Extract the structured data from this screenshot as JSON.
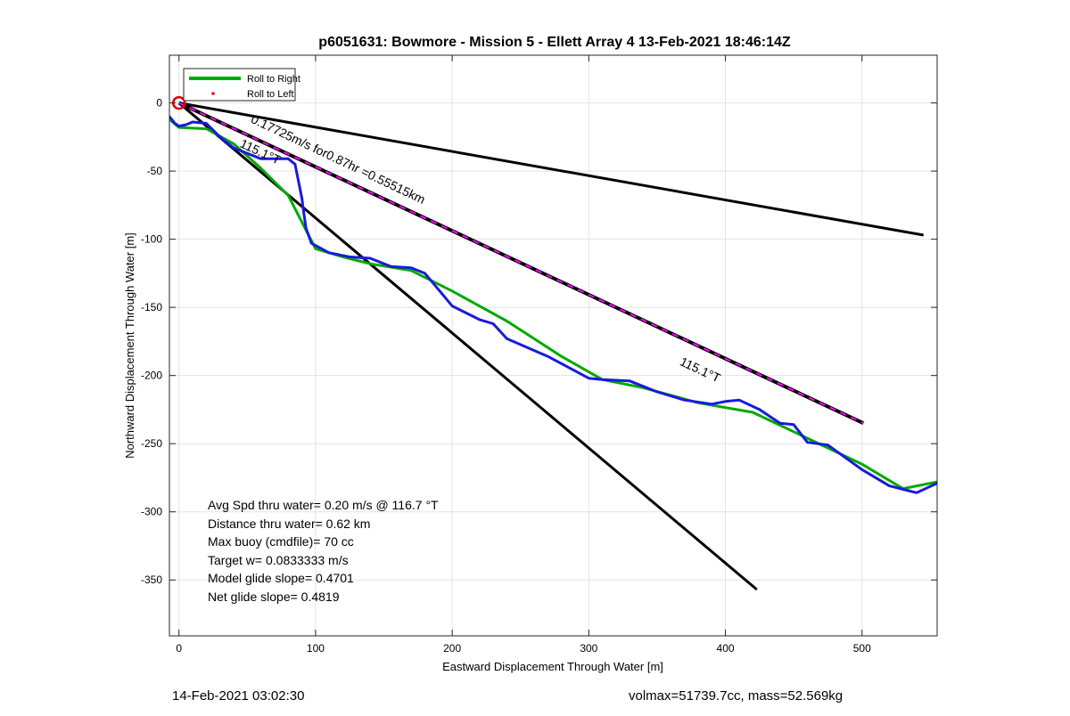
{
  "chart_data": {
    "type": "line",
    "title": "p6051631: Bowmore - Mission 5 - Ellett Array 4 13-Feb-2021 18:46:14Z",
    "xlabel": "Eastward Displacement Through Water [m]",
    "ylabel": "Northward Displacement Through Water [m]",
    "xlim": [
      -7,
      555
    ],
    "ylim": [
      -391,
      35
    ],
    "xticks": [
      0,
      100,
      200,
      300,
      400,
      500
    ],
    "yticks": [
      0,
      -50,
      -100,
      -150,
      -200,
      -250,
      -300,
      -350
    ],
    "grid": true,
    "legend": {
      "placement": "top-left",
      "entries": [
        "Roll to Right",
        "Roll to Left"
      ]
    },
    "colors": {
      "roll_right": "#00aa00",
      "roll_left": "#ff0000",
      "track": "#1a1adc",
      "reference": "#000000",
      "current": "#ff00ff",
      "start_marker": "#dd0000"
    },
    "series": [
      {
        "name": "Roll to Right",
        "color": "#00aa00",
        "x": [
          -7,
          0,
          20,
          40,
          60,
          80,
          100,
          120,
          140,
          170,
          200,
          240,
          280,
          310,
          340,
          380,
          420,
          460,
          500,
          530,
          555
        ],
        "y": [
          -12,
          -18,
          -19,
          -30,
          -48,
          -68,
          -107,
          -113,
          -118,
          -123,
          -138,
          -160,
          -186,
          -203,
          -209,
          -220,
          -227,
          -246,
          -265,
          -283,
          -278
        ]
      },
      {
        "name": "",
        "color": "#1a1adc",
        "x": [
          -7,
          -3,
          0,
          5,
          10,
          20,
          30,
          40,
          50,
          60,
          70,
          80,
          85,
          90,
          91,
          93,
          97,
          110,
          125,
          140,
          155,
          170,
          180,
          190,
          200,
          220,
          230,
          240,
          270,
          300,
          310,
          330,
          350,
          370,
          390,
          400,
          410,
          425,
          440,
          450,
          460,
          475,
          500,
          520,
          540,
          555
        ],
        "y": [
          -10,
          -15,
          -17,
          -16,
          -14,
          -15,
          -25,
          -33,
          -37,
          -41,
          -41,
          -41,
          -45,
          -70,
          -78,
          -92,
          -103,
          -110,
          -113,
          -114,
          -120,
          -121,
          -125,
          -137,
          -149,
          -159,
          -162,
          -173,
          -186,
          -202,
          -203,
          -204,
          -212,
          -218,
          -221,
          -219,
          -218,
          -225,
          -235,
          -236,
          -249,
          -251,
          -269,
          -281,
          -286,
          -279
        ]
      }
    ],
    "reference_lines": [
      {
        "x": [
          0,
          545
        ],
        "y": [
          0,
          -97
        ]
      },
      {
        "x": [
          0,
          423
        ],
        "y": [
          0,
          -357
        ]
      },
      {
        "x": [
          0,
          501
        ],
        "y": [
          0,
          -235
        ]
      }
    ],
    "start_marker": {
      "x": 0,
      "y": 0
    },
    "annotations": [
      {
        "text": "0.17725m/s for0.87hr =0.55515km",
        "x": 52,
        "y": -14,
        "angle": 25.5
      },
      {
        "text": "115.1°T",
        "x": 44,
        "y": -32,
        "angle": 25
      },
      {
        "text": "115.1°T",
        "x": 366,
        "y": -192,
        "angle": 25
      }
    ],
    "stats": [
      "Avg Spd thru water=  0.20 m/s @ 116.7 °T",
      "Distance thru water=  0.62 km",
      "Max buoy (cmdfile)= 70 cc",
      "Target w= 0.0833333 m/s",
      "Model glide slope= 0.4701",
      "Net glide slope= 0.4819"
    ]
  },
  "footer": {
    "left": "14-Feb-2021 03:02:30",
    "right": "volmax=51739.7cc, mass=52.569kg"
  }
}
